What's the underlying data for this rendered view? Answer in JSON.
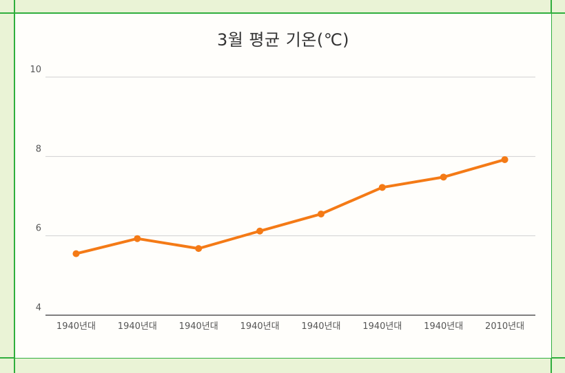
{
  "page": {
    "colors": {
      "background": "#eaf3d6",
      "card": "#fffefb",
      "guide": "#2fae3d",
      "series": "#f47a16",
      "grid": "#d0d0d0",
      "axis": "#333333"
    }
  },
  "chart_data": {
    "type": "line",
    "title": "3월 평균 기온(℃)",
    "xlabel": "",
    "ylabel": "",
    "categories": [
      "1940년대",
      "1940년대",
      "1940년대",
      "1940년대",
      "1940년대",
      "1940년대",
      "1940년대",
      "2010년대"
    ],
    "series": [
      {
        "values": [
          5.55,
          5.93,
          5.68,
          6.12,
          6.55,
          7.22,
          7.48,
          7.92
        ]
      }
    ],
    "yticks": [
      "10",
      "8",
      "6",
      "4"
    ],
    "ylim": [
      4,
      10
    ],
    "grid": true,
    "legend": "none"
  }
}
